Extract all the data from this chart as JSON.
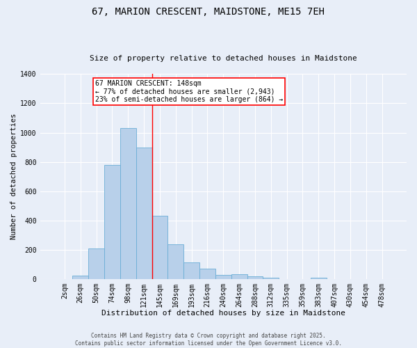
{
  "title_line1": "67, MARION CRESCENT, MAIDSTONE, ME15 7EH",
  "title_line2": "Size of property relative to detached houses in Maidstone",
  "xlabel": "Distribution of detached houses by size in Maidstone",
  "ylabel": "Number of detached properties",
  "footer_line1": "Contains HM Land Registry data © Crown copyright and database right 2025.",
  "footer_line2": "Contains public sector information licensed under the Open Government Licence v3.0.",
  "annotation_line1": "67 MARION CRESCENT: 148sqm",
  "annotation_line2": "← 77% of detached houses are smaller (2,943)",
  "annotation_line3": "23% of semi-detached houses are larger (864) →",
  "bar_categories": [
    "2sqm",
    "26sqm",
    "50sqm",
    "74sqm",
    "98sqm",
    "121sqm",
    "145sqm",
    "169sqm",
    "193sqm",
    "216sqm",
    "240sqm",
    "264sqm",
    "288sqm",
    "312sqm",
    "335sqm",
    "359sqm",
    "383sqm",
    "407sqm",
    "430sqm",
    "454sqm",
    "478sqm"
  ],
  "bar_values": [
    0,
    22,
    210,
    780,
    1030,
    900,
    430,
    235,
    115,
    70,
    25,
    30,
    20,
    10,
    0,
    0,
    10,
    0,
    0,
    0,
    0
  ],
  "bar_color": "#b8d0ea",
  "bar_edge_color": "#6aaed6",
  "bg_color": "#e8eef8",
  "grid_color": "#ffffff",
  "vline_color": "red",
  "ylim": [
    0,
    1400
  ],
  "yticks": [
    0,
    200,
    400,
    600,
    800,
    1000,
    1200,
    1400
  ],
  "annotation_box_color": "white",
  "annotation_box_edge": "red",
  "title_fontsize": 10,
  "subtitle_fontsize": 8,
  "xlabel_fontsize": 8,
  "ylabel_fontsize": 7.5,
  "tick_fontsize": 7,
  "footer_fontsize": 5.5,
  "annotation_fontsize": 7
}
